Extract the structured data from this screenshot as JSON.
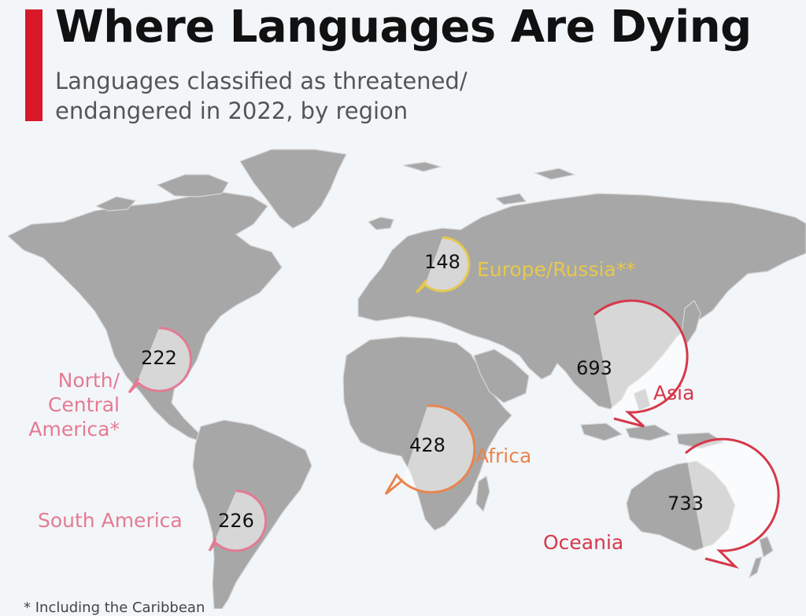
{
  "header": {
    "title": "Where Languages Are Dying",
    "subtitle": "Languages classified as threatened/ endangered in 2022, by region"
  },
  "colors": {
    "accent": "#d7192a",
    "europe_russia": "#e6c84d",
    "north_central_america": "#e37b93",
    "south_america": "#e37b93",
    "africa": "#e8854f",
    "asia": "#d6384a",
    "oceania": "#d6384a"
  },
  "regions": [
    {
      "id": "europe_russia",
      "label": "Europe/Russia**",
      "value": "148"
    },
    {
      "id": "north_central_america",
      "label": "North/ Central America*",
      "value": "222"
    },
    {
      "id": "south_america",
      "label": "South America",
      "value": "226"
    },
    {
      "id": "africa",
      "label": "Africa",
      "value": "428"
    },
    {
      "id": "asia",
      "label": "Asia",
      "value": "693"
    },
    {
      "id": "oceania",
      "label": "Oceania",
      "value": "733"
    }
  ],
  "footnote": "* Including the Caribbean"
}
